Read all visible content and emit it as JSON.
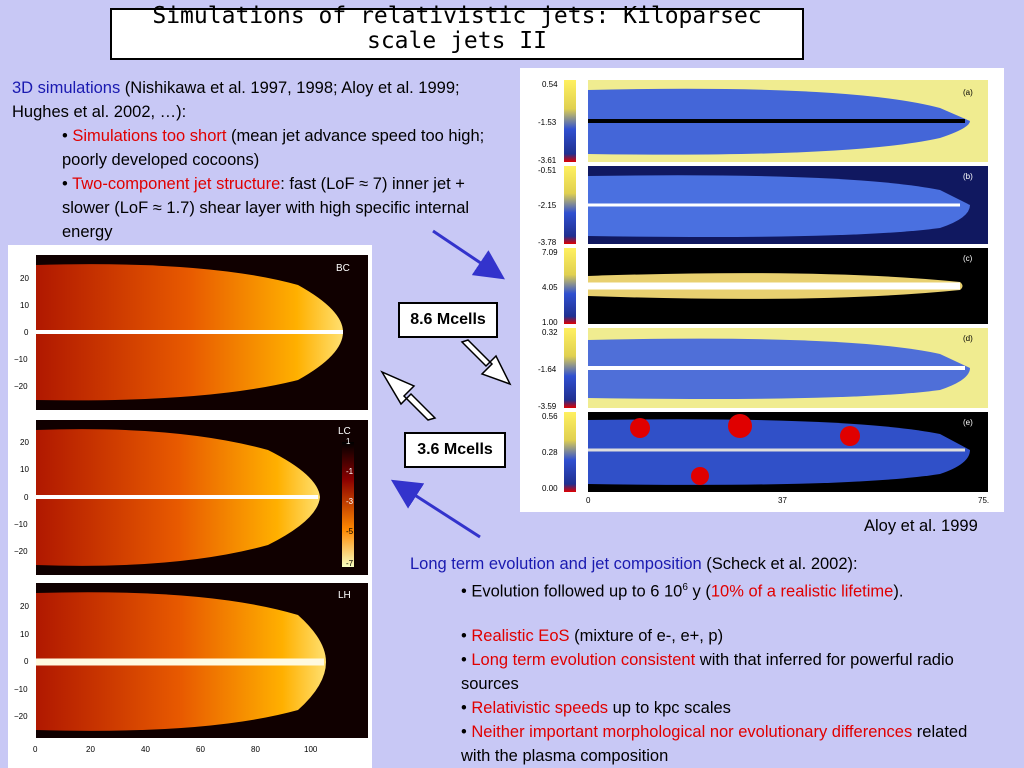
{
  "title": "Simulations of relativistic jets: Kiloparsec scale jets II",
  "intro": {
    "lead": "3D simulations",
    "rest": "  (Nishikawa et al. 1997, 1998; Aloy et al. 1999; Hughes et al. 2002, …):"
  },
  "bullets_top": [
    {
      "highlight": "Simulations too short",
      "rest": " (mean jet advance speed too high; poorly developed cocoons)"
    },
    {
      "highlight": "Two-component jet structure",
      "rest": ": fast (LoF ≈ 7) inner jet + slower (LoF ≈ 1.7) shear layer with high specific internal energy"
    }
  ],
  "labels": {
    "mcells_a": "8.6 Mcells",
    "mcells_b": "3.6 Mcells"
  },
  "caption_right": "Aloy et al. 1999",
  "bottom": {
    "lead": "Long term evolution and jet composition",
    "rest": " (Scheck et al. 2002):",
    "b1_pre": "Evolution followed up to 6 10",
    "b1_sup": "6",
    "b1_mid": " y (",
    "b1_red": "10% of a realistic lifetime",
    "b1_end": ").",
    "b2_red": "Realistic EoS",
    "b2_rest": " (mixture of e-, e+, p)",
    "b3_red": "Long term evolution consistent",
    "b3_rest": " with that inferred for powerful radio sources",
    "b4_red": "Relativistic speeds",
    "b4_rest": " up to kpc scales",
    "b5_red": "Neither important morphological nor evolutionary differences",
    "b5_rest": " related with the plasma composition"
  },
  "left_figure": {
    "panels": [
      "BC",
      "LC",
      "LH"
    ],
    "y_ticks": [
      "20",
      "10",
      "0",
      "−10",
      "−20"
    ],
    "x_ticks": [
      "0",
      "20",
      "40",
      "60",
      "80",
      "100"
    ],
    "colorbar_ticks": [
      "1",
      "-1",
      "-3",
      "-5",
      "-7"
    ]
  },
  "right_figure": {
    "panels": [
      "(a)",
      "(b)",
      "(c)",
      "(d)",
      "(e)"
    ],
    "scales": [
      [
        "0.54",
        "-1.53",
        "-3.61"
      ],
      [
        "-0.51",
        "-2.15",
        "-3.78"
      ],
      [
        "7.09",
        "4.05",
        "1.00"
      ],
      [
        "0.32",
        "-1.64",
        "-3.59"
      ],
      [
        "0.56",
        "0.28",
        "0.00"
      ]
    ],
    "x_ticks": [
      "0",
      "37",
      "75."
    ]
  },
  "colors": {
    "background": "#c8c8f5",
    "accent_blue": "#1a1ab0",
    "highlight_red": "#e00000",
    "arrow": "#3333cc"
  }
}
